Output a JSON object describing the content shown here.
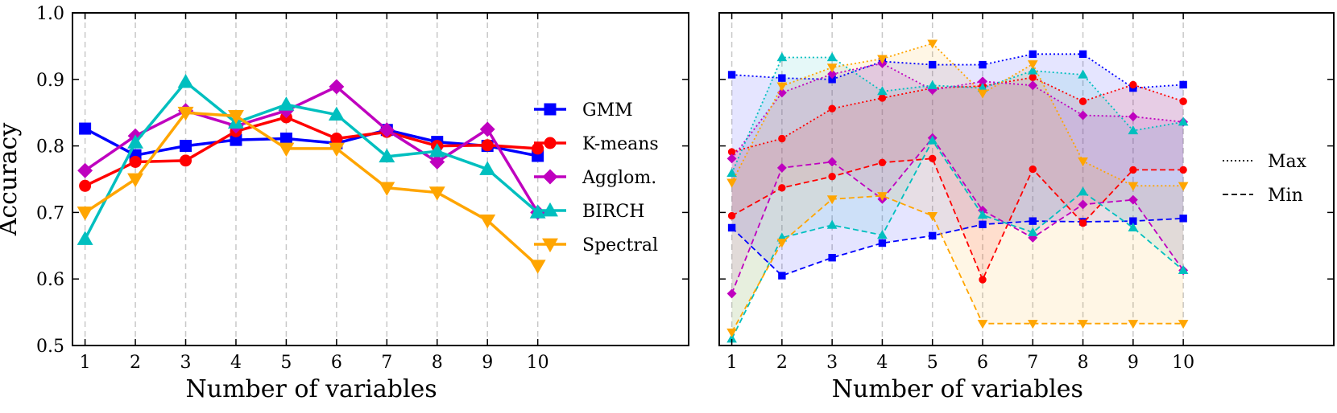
{
  "chart_data": [
    {
      "type": "line",
      "panel": "left",
      "title": "",
      "xlabel": "Number of variables",
      "ylabel": "Accuracy",
      "x": [
        1,
        2,
        3,
        4,
        5,
        6,
        7,
        8,
        9,
        10
      ],
      "xlim": [
        0.75,
        13.0
      ],
      "ylim": [
        0.5,
        1.0
      ],
      "yticks": [
        0.5,
        0.6,
        0.7,
        0.8,
        0.9,
        1.0
      ],
      "ytick_labels": [
        "0.5",
        "0.6",
        "0.7",
        "0.8",
        "0.9",
        "1.0"
      ],
      "xtick_labels": [
        "1",
        "2",
        "3",
        "4",
        "5",
        "6",
        "7",
        "8",
        "9",
        "10"
      ],
      "grid": "vertical dashed",
      "legend_position": "right",
      "series": [
        {
          "name": "GMM",
          "color": "#0000ff",
          "marker": "square",
          "values": [
            0.826,
            0.786,
            0.8,
            0.809,
            0.811,
            0.804,
            0.824,
            0.806,
            0.8,
            0.785
          ]
        },
        {
          "name": "K-means",
          "color": "#ff0000",
          "marker": "circle",
          "values": [
            0.74,
            0.776,
            0.778,
            0.822,
            0.843,
            0.811,
            0.821,
            0.8,
            0.801,
            0.796
          ]
        },
        {
          "name": "Agglom.",
          "color": "#bf00bf",
          "marker": "diamond",
          "values": [
            0.763,
            0.815,
            0.853,
            0.83,
            0.853,
            0.889,
            0.824,
            0.776,
            0.825,
            0.7
          ]
        },
        {
          "name": "BIRCH",
          "color": "#00bfbf",
          "marker": "triangle-up",
          "values": [
            0.66,
            0.805,
            0.896,
            0.835,
            0.862,
            0.847,
            0.784,
            0.792,
            0.765,
            0.7
          ]
        },
        {
          "name": "Spectral",
          "color": "#ffa500",
          "marker": "triangle-down",
          "values": [
            0.7,
            0.75,
            0.85,
            0.845,
            0.796,
            0.796,
            0.737,
            0.73,
            0.688,
            0.62
          ]
        }
      ]
    },
    {
      "type": "area",
      "panel": "right",
      "title": "",
      "xlabel": "Number of variables",
      "ylabel": "",
      "x": [
        1,
        2,
        3,
        4,
        5,
        6,
        7,
        8,
        9,
        10
      ],
      "xlim": [
        0.75,
        13.0
      ],
      "ylim": [
        0.5,
        1.0
      ],
      "xtick_labels": [
        "1",
        "2",
        "3",
        "4",
        "5",
        "6",
        "7",
        "8",
        "9",
        "10"
      ],
      "grid": "vertical dashed",
      "legend_position": "right",
      "legend": [
        {
          "label": "Max",
          "style": "dotted"
        },
        {
          "label": "Min",
          "style": "dashed"
        }
      ],
      "series": [
        {
          "name": "GMM",
          "color": "#0000ff",
          "marker": "square",
          "max": [
            0.907,
            0.902,
            0.9,
            0.927,
            0.922,
            0.922,
            0.938,
            0.938,
            0.887,
            0.892
          ],
          "min": [
            0.677,
            0.605,
            0.632,
            0.654,
            0.665,
            0.682,
            0.687,
            0.686,
            0.687,
            0.691
          ]
        },
        {
          "name": "K-means",
          "color": "#ff0000",
          "marker": "circle",
          "max": [
            0.791,
            0.811,
            0.856,
            0.872,
            0.887,
            0.89,
            0.903,
            0.867,
            0.892,
            0.867
          ],
          "min": [
            0.695,
            0.737,
            0.754,
            0.775,
            0.781,
            0.599,
            0.765,
            0.684,
            0.764,
            0.764
          ]
        },
        {
          "name": "Agglom.",
          "color": "#bf00bf",
          "marker": "diamond",
          "max": [
            0.781,
            0.88,
            0.908,
            0.924,
            0.884,
            0.897,
            0.891,
            0.846,
            0.844,
            0.836
          ]
        },
        {
          "name": "BIRCH",
          "color": "#00bfbf",
          "marker": "triangle-up",
          "max": [
            0.759,
            0.933,
            0.933,
            0.882,
            0.891,
            0.887,
            0.913,
            0.907,
            0.823,
            0.836
          ],
          "min": [
            0.51,
            0.662,
            0.681,
            0.666,
            0.808,
            0.696,
            0.67,
            0.731,
            0.677,
            0.613
          ]
        },
        {
          "name": "Spectral",
          "color": "#ffa500",
          "marker": "triangle-down",
          "max": [
            0.745,
            0.89,
            0.918,
            0.931,
            0.954,
            0.879,
            0.923,
            0.777,
            0.74,
            0.74
          ],
          "min": [
            0.52,
            0.655,
            0.72,
            0.725,
            0.695,
            0.533,
            0.533,
            0.533,
            0.533,
            0.533
          ]
        }
      ],
      "agglom_min": [
        0.578,
        0.767,
        0.776,
        0.72,
        0.812,
        0.703,
        0.662,
        0.712,
        0.719,
        0.613
      ]
    }
  ]
}
